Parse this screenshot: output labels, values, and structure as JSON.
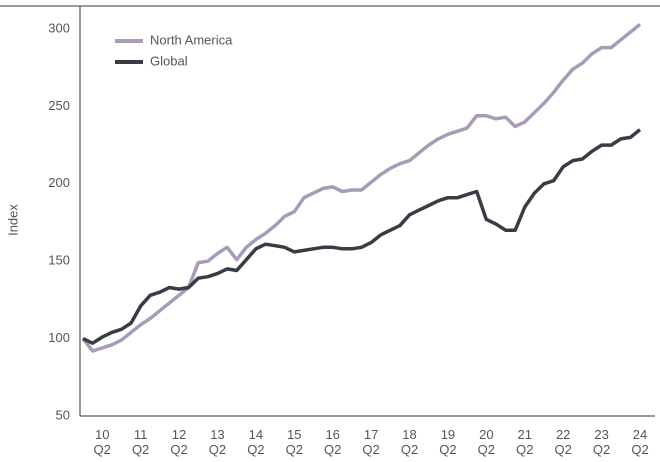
{
  "chart_data": {
    "type": "line",
    "y_label": "Index",
    "categories": [
      null,
      null,
      "10 Q2",
      null,
      null,
      null,
      "11 Q2",
      null,
      null,
      null,
      "12 Q2",
      null,
      null,
      null,
      "13 Q2",
      null,
      null,
      null,
      "14 Q2",
      null,
      null,
      null,
      "15 Q2",
      null,
      null,
      null,
      "16 Q2",
      null,
      null,
      null,
      "17 Q2",
      null,
      null,
      null,
      "18 Q2",
      null,
      null,
      null,
      "19 Q2",
      null,
      null,
      null,
      "20 Q2",
      null,
      null,
      null,
      "21 Q2",
      null,
      null,
      null,
      "22 Q2",
      null,
      null,
      null,
      "23 Q2",
      null,
      null,
      null,
      "24 Q2"
    ],
    "series": [
      {
        "name": "North America",
        "color": "#a99bb8",
        "values": [
          100,
          92,
          94,
          96,
          99,
          104,
          109,
          113,
          118,
          123,
          128,
          133,
          149,
          150,
          155,
          159,
          151,
          159,
          164,
          168,
          173,
          179,
          182,
          191,
          194,
          197,
          198,
          195,
          196,
          196,
          201,
          206,
          210,
          213,
          215,
          220,
          225,
          229,
          232,
          234,
          236,
          244,
          244,
          242,
          243,
          237,
          240,
          246,
          252,
          259,
          267,
          274,
          278,
          284,
          288,
          288,
          293,
          298,
          303
        ]
      },
      {
        "name": "Global",
        "color": "#393c45",
        "values": [
          100,
          97,
          101,
          104,
          106,
          110,
          121,
          128,
          130,
          133,
          132,
          133,
          139,
          140,
          142,
          145,
          144,
          151,
          158,
          161,
          160,
          159,
          156,
          157,
          158,
          159,
          159,
          158,
          158,
          159,
          162,
          167,
          170,
          173,
          180,
          183,
          186,
          189,
          191,
          191,
          193,
          195,
          177,
          174,
          170,
          170,
          185,
          194,
          200,
          202,
          211,
          215,
          216,
          221,
          225,
          225,
          229,
          230,
          235
        ]
      }
    ],
    "ylim": [
      50,
      300
    ],
    "yticks": [
      50,
      100,
      150,
      200,
      250,
      300
    ],
    "grid": false,
    "legend": "top-left"
  }
}
